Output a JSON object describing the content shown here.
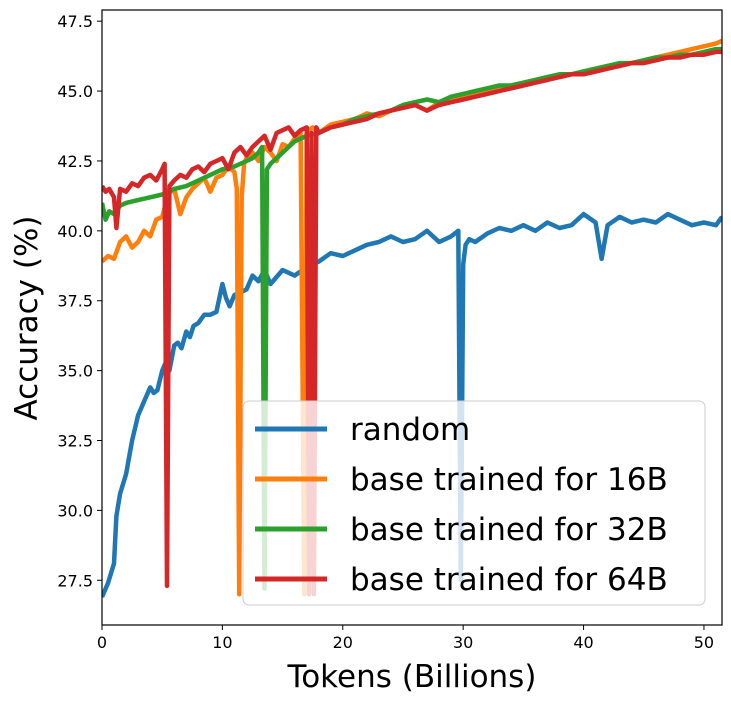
{
  "chart_data": {
    "type": "line",
    "title": "",
    "xlabel": "Tokens (Billions)",
    "ylabel": "Accuracy (%)",
    "xlim": [
      0,
      51.5
    ],
    "ylim": [
      25.9,
      47.9
    ],
    "xticks": [
      0,
      10,
      20,
      30,
      40,
      50
    ],
    "yticks": [
      27.5,
      30.0,
      32.5,
      35.0,
      37.5,
      40.0,
      42.5,
      45.0,
      47.5
    ],
    "xtick_labels": [
      "0",
      "10",
      "20",
      "30",
      "40",
      "50"
    ],
    "ytick_labels": [
      "27.5",
      "30.0",
      "32.5",
      "35.0",
      "37.5",
      "40.0",
      "42.5",
      "45.0",
      "47.5"
    ],
    "grid": false,
    "legend_position": "lower-right",
    "series": [
      {
        "name": "random",
        "color": "#1f77b4",
        "x": [
          0,
          0.5,
          1,
          1.2,
          1.5,
          2,
          2.5,
          3,
          3.5,
          4,
          4.3,
          4.6,
          5,
          5.3,
          5.6,
          6,
          6.3,
          6.6,
          7,
          7.3,
          7.6,
          8,
          8.5,
          9,
          9.5,
          10,
          10.3,
          10.6,
          11,
          11.5,
          12,
          12.5,
          13,
          13.5,
          14,
          15,
          16,
          17,
          18,
          19,
          20,
          21,
          22,
          23,
          24,
          25,
          26,
          27,
          28,
          29,
          29.6,
          29.8,
          30,
          30.2,
          30.5,
          31,
          32,
          33,
          34,
          35,
          36,
          37,
          38,
          39,
          40,
          41,
          41.5,
          42,
          43,
          44,
          45,
          46,
          47,
          48,
          49,
          50,
          51,
          51.5
        ],
        "values": [
          26.9,
          27.4,
          28.1,
          29.8,
          30.6,
          31.3,
          32.5,
          33.4,
          33.9,
          34.4,
          34.2,
          34.3,
          35.0,
          35.3,
          35.0,
          35.9,
          36.0,
          35.8,
          36.4,
          36.2,
          36.6,
          36.7,
          37.0,
          37.0,
          37.1,
          38.1,
          37.6,
          37.3,
          37.7,
          37.8,
          37.9,
          38.4,
          38.2,
          38.6,
          38.1,
          38.6,
          38.4,
          38.7,
          38.9,
          39.2,
          39.1,
          39.3,
          39.5,
          39.6,
          39.8,
          39.6,
          39.7,
          40.0,
          39.6,
          39.8,
          40.0,
          27.5,
          38.8,
          39.5,
          39.7,
          39.6,
          39.9,
          40.1,
          40.0,
          40.2,
          40.0,
          40.3,
          40.1,
          40.2,
          40.6,
          40.3,
          39.0,
          40.2,
          40.5,
          40.3,
          40.4,
          40.3,
          40.6,
          40.4,
          40.2,
          40.3,
          40.2,
          40.5
        ]
      },
      {
        "name": "base trained for 16B",
        "color": "#ff7f0e",
        "x": [
          0,
          0.5,
          1,
          1.5,
          2,
          2.5,
          3,
          3.5,
          4,
          4.5,
          5,
          5.5,
          6,
          6.5,
          7,
          7.5,
          8,
          8.5,
          9,
          9.5,
          10,
          10.5,
          11,
          11.2,
          11.4,
          11.6,
          11.8,
          12,
          12.5,
          13,
          13.5,
          14,
          14.5,
          15,
          15.5,
          16,
          16.5,
          16.8,
          17,
          17.2,
          17.5,
          18,
          19,
          20,
          21,
          22,
          23,
          24,
          25,
          26,
          27,
          28,
          29,
          30,
          31,
          32,
          33,
          34,
          35,
          36,
          37,
          38,
          39,
          40,
          41,
          42,
          43,
          44,
          45,
          46,
          47,
          48,
          49,
          50,
          51,
          51.5
        ],
        "values": [
          38.9,
          39.1,
          39.0,
          39.6,
          39.8,
          39.4,
          39.6,
          40.0,
          39.8,
          40.4,
          40.5,
          41.3,
          41.5,
          40.6,
          41.2,
          41.5,
          41.7,
          41.9,
          41.4,
          41.9,
          42.0,
          42.3,
          42.1,
          41.5,
          27.0,
          41.2,
          42.4,
          42.6,
          42.8,
          42.5,
          43.0,
          42.8,
          42.5,
          43.1,
          43.0,
          43.3,
          43.5,
          27.0,
          43.4,
          43.6,
          43.7,
          43.5,
          43.8,
          43.9,
          44.0,
          44.2,
          44.1,
          44.3,
          44.4,
          44.5,
          44.3,
          44.6,
          44.7,
          44.8,
          44.9,
          45.0,
          45.1,
          45.2,
          45.3,
          45.4,
          45.5,
          45.5,
          45.6,
          45.7,
          45.8,
          45.9,
          45.9,
          46.0,
          46.1,
          46.2,
          46.3,
          46.4,
          46.5,
          46.6,
          46.7,
          46.8
        ]
      },
      {
        "name": "base trained for 32B",
        "color": "#2ca02c",
        "x": [
          0,
          0.3,
          0.6,
          1,
          1.5,
          2,
          3,
          4,
          5,
          6,
          7,
          8,
          9,
          10,
          11,
          12,
          12.5,
          13,
          13.3,
          13.5,
          13.7,
          14,
          15,
          16,
          17,
          18,
          19,
          20,
          21,
          22,
          23,
          24,
          25,
          26,
          27,
          28,
          29,
          30,
          31,
          32,
          33,
          34,
          35,
          36,
          37,
          38,
          39,
          40,
          41,
          42,
          43,
          44,
          45,
          46,
          47,
          48,
          49,
          50,
          51,
          51.5
        ],
        "values": [
          41.0,
          40.4,
          40.7,
          40.6,
          40.9,
          41.0,
          41.1,
          41.2,
          41.3,
          41.5,
          41.6,
          41.8,
          42.0,
          42.2,
          42.3,
          42.5,
          42.6,
          42.8,
          43.0,
          27.2,
          42.2,
          42.4,
          42.8,
          43.2,
          43.4,
          43.5,
          43.7,
          43.8,
          44.0,
          44.1,
          44.2,
          44.3,
          44.5,
          44.6,
          44.7,
          44.6,
          44.8,
          44.9,
          45.0,
          45.1,
          45.2,
          45.2,
          45.3,
          45.4,
          45.5,
          45.6,
          45.6,
          45.7,
          45.8,
          45.9,
          46.0,
          46.0,
          46.1,
          46.2,
          46.2,
          46.3,
          46.3,
          46.4,
          46.5,
          46.5
        ]
      },
      {
        "name": "base trained for 64B",
        "color": "#d62728",
        "x": [
          0,
          0.3,
          0.6,
          1,
          1.2,
          1.5,
          2,
          2.5,
          3,
          3.5,
          4,
          4.5,
          5,
          5.2,
          5.4,
          5.6,
          6,
          6.5,
          7,
          7.5,
          8,
          8.5,
          9,
          9.5,
          10,
          10.5,
          11,
          11.5,
          12,
          12.5,
          13,
          13.5,
          14,
          14.5,
          15,
          15.5,
          16,
          16.5,
          17,
          17.2,
          17.4,
          17.6,
          17.8,
          18,
          18.5,
          19,
          20,
          21,
          22,
          23,
          24,
          25,
          26,
          27,
          28,
          29,
          30,
          31,
          32,
          33,
          34,
          35,
          36,
          37,
          38,
          39,
          40,
          41,
          42,
          43,
          44,
          45,
          46,
          47,
          48,
          49,
          50,
          51,
          51.5
        ],
        "values": [
          41.6,
          41.4,
          41.5,
          41.2,
          40.1,
          41.5,
          41.4,
          41.7,
          41.6,
          41.9,
          42.0,
          41.8,
          42.2,
          42.4,
          27.3,
          41.6,
          41.8,
          42.0,
          41.9,
          42.2,
          42.3,
          42.1,
          42.4,
          42.5,
          42.6,
          42.2,
          42.8,
          43.0,
          42.7,
          43.0,
          43.2,
          43.4,
          42.9,
          43.5,
          43.6,
          43.7,
          43.4,
          43.6,
          43.7,
          27.0,
          43.5,
          27.0,
          43.7,
          43.5,
          43.6,
          43.7,
          43.8,
          43.9,
          44.0,
          44.2,
          44.3,
          44.4,
          44.5,
          44.3,
          44.5,
          44.6,
          44.7,
          44.8,
          44.9,
          45.0,
          45.1,
          45.2,
          45.3,
          45.4,
          45.5,
          45.6,
          45.6,
          45.7,
          45.8,
          45.9,
          46.0,
          46.0,
          46.1,
          46.2,
          46.2,
          46.3,
          46.3,
          46.4,
          46.4
        ]
      }
    ]
  }
}
